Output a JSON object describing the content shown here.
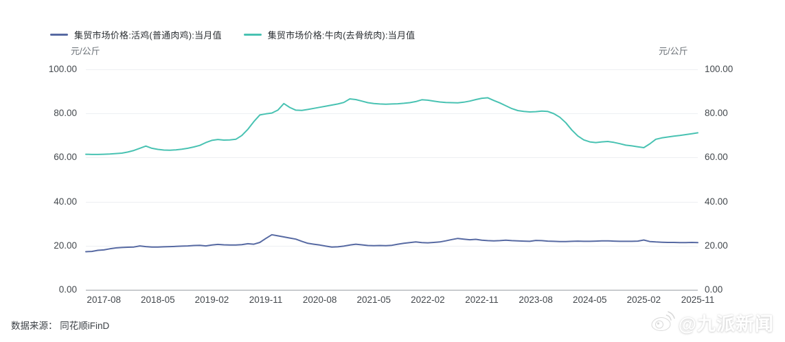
{
  "unit_left": "元/公斤",
  "unit_right": "元/公斤",
  "footer": {
    "source_label": "数据来源： 同花顺iFinD"
  },
  "watermark": {
    "handle": "@九派新闻"
  },
  "colors": {
    "chicken_line": "#5669a2",
    "beef_line": "#48c2b2",
    "grid": "#edeff2",
    "axis": "#9aa0a6"
  },
  "chart_data": {
    "type": "line",
    "title": "",
    "xlabel": "",
    "ylabel": "元/公斤",
    "ylim": [
      0,
      100
    ],
    "grid": true,
    "legend_position": "top-left",
    "x_start": "2017-05",
    "x_end": "2025-11",
    "x_frequency": "monthly",
    "x_tick_labels": [
      "2017-08",
      "2018-05",
      "2019-02",
      "2019-11",
      "2020-08",
      "2021-05",
      "2022-02",
      "2022-11",
      "2023-08",
      "2024-05",
      "2025-02",
      "2025-11"
    ],
    "y_tick_labels": [
      "0.00",
      "20.00",
      "40.00",
      "60.00",
      "80.00",
      "100.00"
    ],
    "y_tick_values": [
      0,
      20,
      40,
      60,
      80,
      100
    ],
    "series": [
      {
        "name": "集贸市场价格:活鸡(普通肉鸡):当月值",
        "color": "#5669a2",
        "values": [
          17.3,
          17.4,
          17.9,
          18.1,
          18.6,
          19.0,
          19.2,
          19.3,
          19.4,
          19.9,
          19.6,
          19.4,
          19.4,
          19.5,
          19.6,
          19.7,
          19.8,
          19.9,
          20.1,
          20.2,
          19.9,
          20.3,
          20.6,
          20.4,
          20.3,
          20.3,
          20.5,
          20.9,
          20.7,
          21.5,
          23.3,
          25.0,
          24.5,
          24.0,
          23.5,
          23.0,
          22.0,
          21.1,
          20.7,
          20.3,
          19.8,
          19.4,
          19.5,
          19.8,
          20.3,
          20.7,
          20.4,
          20.1,
          20.0,
          20.1,
          20.0,
          20.2,
          20.7,
          21.1,
          21.4,
          21.7,
          21.4,
          21.3,
          21.5,
          21.7,
          22.2,
          22.8,
          23.3,
          23.0,
          22.7,
          22.9,
          22.5,
          22.3,
          22.2,
          22.3,
          22.5,
          22.3,
          22.2,
          22.1,
          22.0,
          22.4,
          22.3,
          22.1,
          22.0,
          21.9,
          21.9,
          22.0,
          22.1,
          22.0,
          22.0,
          22.1,
          22.2,
          22.2,
          22.1,
          22.0,
          22.0,
          22.0,
          22.1,
          22.6,
          21.9,
          21.7,
          21.6,
          21.5,
          21.5,
          21.4,
          21.4,
          21.5,
          21.4
        ]
      },
      {
        "name": "集贸市场价格:牛肉(去骨统肉):当月值",
        "color": "#48c2b2",
        "values": [
          61.5,
          61.4,
          61.4,
          61.5,
          61.6,
          61.8,
          62.0,
          62.5,
          63.2,
          64.2,
          65.2,
          64.2,
          63.7,
          63.4,
          63.3,
          63.5,
          63.8,
          64.2,
          64.8,
          65.5,
          66.8,
          67.8,
          68.2,
          67.9,
          68.0,
          68.3,
          70.0,
          72.8,
          76.3,
          79.3,
          79.8,
          80.2,
          81.5,
          84.5,
          82.7,
          81.5,
          81.4,
          81.8,
          82.3,
          82.8,
          83.3,
          83.8,
          84.3,
          85.0,
          86.6,
          86.3,
          85.6,
          84.9,
          84.5,
          84.3,
          84.2,
          84.3,
          84.4,
          84.6,
          84.9,
          85.4,
          86.2,
          86.0,
          85.6,
          85.2,
          85.0,
          84.9,
          84.8,
          85.1,
          85.6,
          86.3,
          86.9,
          87.1,
          85.9,
          84.8,
          83.5,
          82.2,
          81.3,
          80.9,
          80.7,
          80.8,
          81.1,
          80.9,
          79.9,
          78.3,
          75.8,
          72.5,
          69.8,
          68.0,
          67.1,
          66.8,
          67.1,
          67.3,
          66.9,
          66.3,
          65.6,
          65.3,
          64.9,
          64.5,
          66.2,
          68.3,
          68.9,
          69.3,
          69.7,
          70.0,
          70.4,
          70.8,
          71.2
        ]
      }
    ]
  }
}
